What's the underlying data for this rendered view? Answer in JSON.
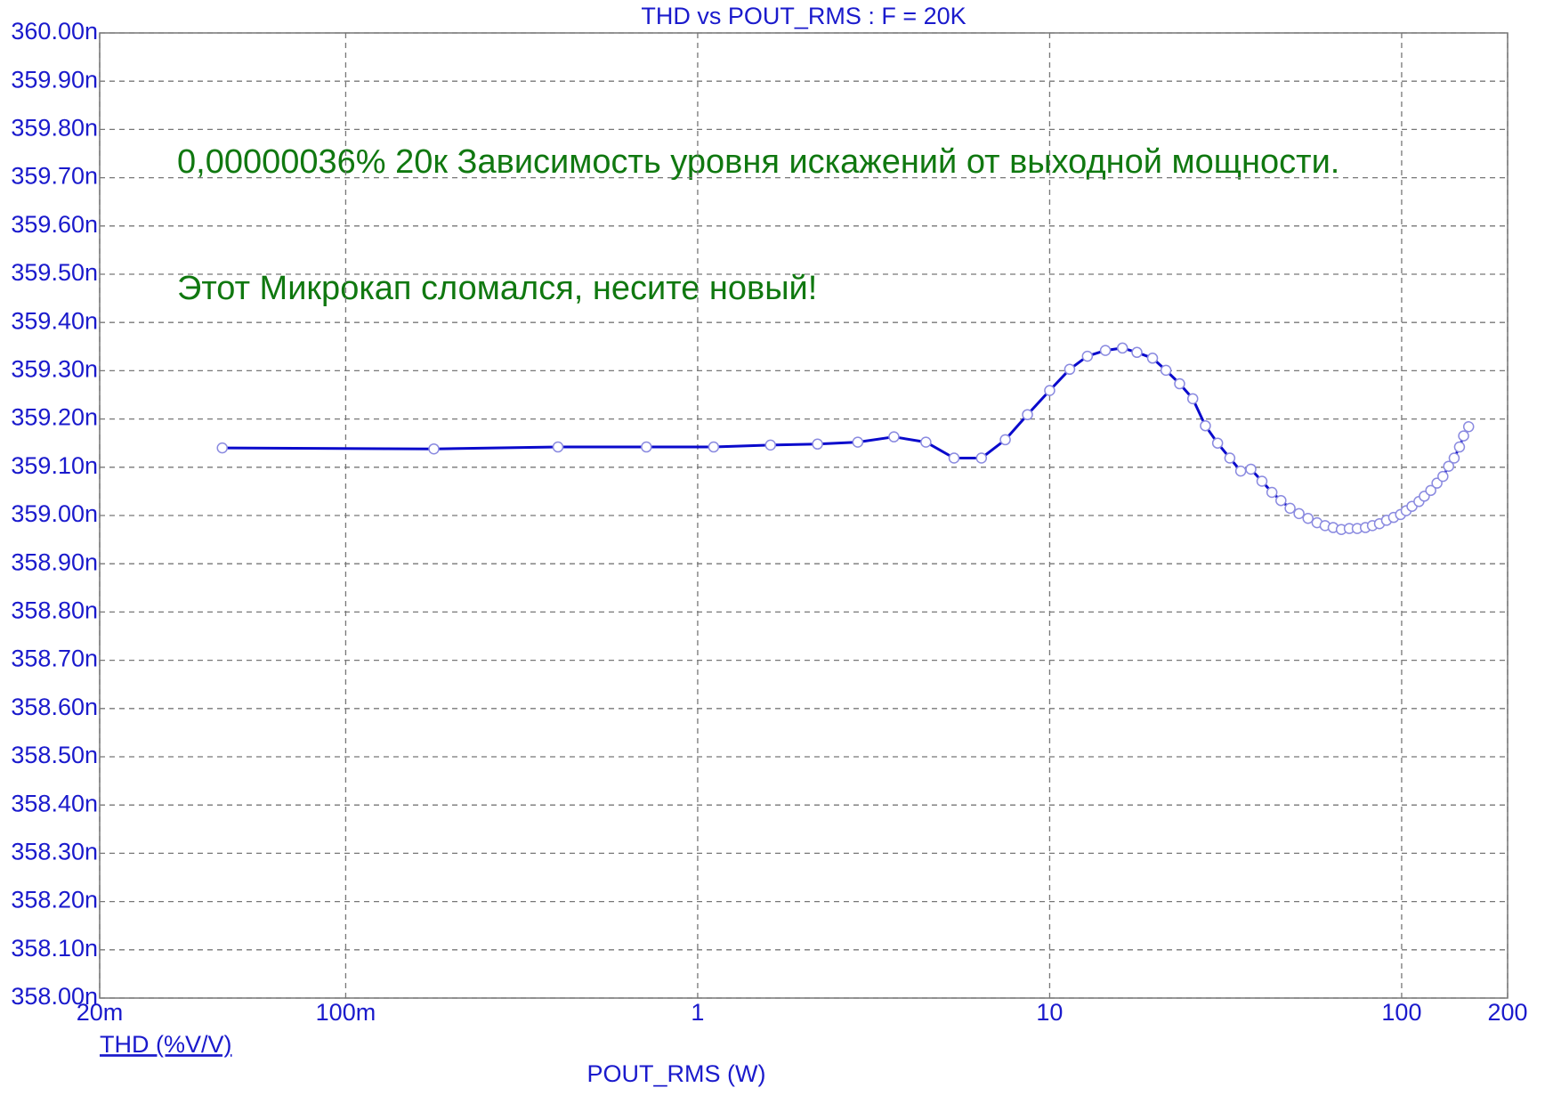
{
  "chart_data": {
    "type": "line",
    "title": "THD vs POUT_RMS : F = 20K",
    "xlabel": "POUT_RMS (W)",
    "annotations": [
      "0,00000036% 20к Зависимость уровня искажений от выходной мощности.",
      "Этот Микрокап сломался, несите новый!"
    ],
    "xscale": "log",
    "grid": true,
    "xlim": [
      0.02,
      200
    ],
    "xticks": [
      {
        "value": 0.02,
        "label": "20m"
      },
      {
        "value": 0.1,
        "label": "100m"
      },
      1,
      10,
      100,
      200
    ],
    "ylim": [
      358,
      360
    ],
    "yticks": [
      {
        "value": 358,
        "label": "358.00n"
      },
      {
        "value": 358.1,
        "label": "358.10n"
      },
      {
        "value": 358.2,
        "label": "358.20n"
      },
      {
        "value": 358.3,
        "label": "358.30n"
      },
      {
        "value": 358.4,
        "label": "358.40n"
      },
      {
        "value": 358.5,
        "label": "358.50n"
      },
      {
        "value": 358.6,
        "label": "358.60n"
      },
      {
        "value": 358.7,
        "label": "358.70n"
      },
      {
        "value": 358.8,
        "label": "358.80n"
      },
      {
        "value": 358.9,
        "label": "358.90n"
      },
      {
        "value": 359,
        "label": "359.00n"
      },
      {
        "value": 359.1,
        "label": "359.10n"
      },
      {
        "value": 359.2,
        "label": "359.20n"
      },
      {
        "value": 359.3,
        "label": "359.30n"
      },
      {
        "value": 359.4,
        "label": "359.40n"
      },
      {
        "value": 359.5,
        "label": "359.50n"
      },
      {
        "value": 359.6,
        "label": "359.60n"
      },
      {
        "value": 359.7,
        "label": "359.70n"
      },
      {
        "value": 359.8,
        "label": "359.80n"
      },
      {
        "value": 359.9,
        "label": "359.90n"
      },
      {
        "value": 360,
        "label": "360.00n"
      }
    ],
    "series": [
      {
        "name": "THD (%V/V)",
        "color": "#0a0acc",
        "marker_color": "#8a8ae0",
        "x": [
          0.0446,
          0.178,
          0.401,
          0.715,
          1.11,
          1.61,
          2.19,
          2.85,
          3.61,
          4.45,
          5.35,
          6.4,
          7.48,
          8.65,
          10,
          11.4,
          12.8,
          14.4,
          16.1,
          17.7,
          19.6,
          21.4,
          23.4,
          25.5,
          27.7,
          30,
          32.5,
          34.9,
          37.3,
          40.1,
          42.8,
          45.4,
          48.2,
          51.1,
          54.2,
          57.5,
          60.6,
          63.9,
          67.4,
          71,
          74.8,
          78.9,
          82.6,
          86.5,
          90.6,
          94.9,
          99.3,
          103,
          107,
          112,
          116,
          121,
          126,
          131,
          136,
          141,
          146,
          150,
          155
        ],
        "values": [
          359.14,
          359.138,
          359.142,
          359.142,
          359.142,
          359.146,
          359.148,
          359.152,
          359.163,
          359.152,
          359.119,
          359.119,
          359.157,
          359.209,
          359.259,
          359.303,
          359.33,
          359.342,
          359.347,
          359.338,
          359.326,
          359.301,
          359.273,
          359.242,
          359.186,
          359.15,
          359.119,
          359.092,
          359.096,
          359.071,
          359.048,
          359.031,
          359.015,
          359.004,
          358.994,
          358.985,
          358.979,
          358.975,
          358.971,
          358.973,
          358.973,
          358.975,
          358.979,
          358.983,
          358.99,
          358.996,
          359.002,
          359.01,
          359.019,
          359.029,
          359.04,
          359.052,
          359.067,
          359.081,
          359.102,
          359.119,
          359.142,
          359.165,
          359.184
        ]
      }
    ]
  }
}
